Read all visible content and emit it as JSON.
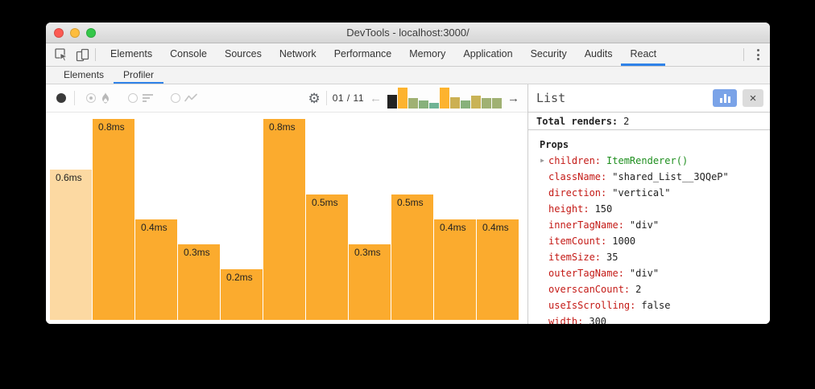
{
  "window": {
    "title": "DevTools - localhost:3000/"
  },
  "main_tabs": {
    "items": [
      "Elements",
      "Console",
      "Sources",
      "Network",
      "Performance",
      "Memory",
      "Application",
      "Security",
      "Audits",
      "React"
    ],
    "active": "React"
  },
  "sub_tabs": {
    "items": [
      "Elements",
      "Profiler"
    ],
    "active": "Profiler"
  },
  "toolbar": {
    "gear_icon": "⚙",
    "commit_position": "01 / 11",
    "prev_arrow": "←",
    "next_arrow": "→",
    "commit_bars": [
      {
        "h": 0.66,
        "color": "#222222",
        "selected": true
      },
      {
        "h": 1.0,
        "color": "#fdb32e"
      },
      {
        "h": 0.5,
        "color": "#a0b173"
      },
      {
        "h": 0.38,
        "color": "#87b17b"
      },
      {
        "h": 0.27,
        "color": "#6fb394"
      },
      {
        "h": 1.0,
        "color": "#fdb32e"
      },
      {
        "h": 0.54,
        "color": "#ccb052"
      },
      {
        "h": 0.38,
        "color": "#87b17b"
      },
      {
        "h": 0.62,
        "color": "#c9b356"
      },
      {
        "h": 0.5,
        "color": "#a0b173"
      },
      {
        "h": 0.5,
        "color": "#a0b173"
      }
    ]
  },
  "chart_data": {
    "type": "bar",
    "values": [
      0.6,
      0.8,
      0.4,
      0.3,
      0.2,
      0.8,
      0.5,
      0.3,
      0.5,
      0.4,
      0.4
    ],
    "labels": [
      "0.6ms",
      "0.8ms",
      "0.4ms",
      "0.3ms",
      "0.2ms",
      "0.8ms",
      "0.5ms",
      "0.3ms",
      "0.5ms",
      "0.4ms",
      "0.4ms"
    ],
    "unit": "ms",
    "ylim": [
      0,
      0.8
    ],
    "selected_index": 0,
    "bar_color": "#fbab2e",
    "selected_bar_color": "#fcd9a2",
    "label_color": "#222222",
    "grid": false,
    "orientation": "bottom-anchored"
  },
  "details_panel": {
    "title": "List",
    "close_icon": "×",
    "expander_icon": "▶",
    "accent_button_color": "#7aa3e8",
    "total_renders_label": "Total renders:",
    "total_renders_value": "2",
    "props_heading": "Props",
    "props": [
      {
        "key": "children",
        "value": "ItemRenderer()",
        "value_color": "green",
        "expandable": true
      },
      {
        "key": "className",
        "value": "\"shared_List__3QQeP\""
      },
      {
        "key": "direction",
        "value": "\"vertical\""
      },
      {
        "key": "height",
        "value": "150"
      },
      {
        "key": "innerTagName",
        "value": "\"div\""
      },
      {
        "key": "itemCount",
        "value": "1000"
      },
      {
        "key": "itemSize",
        "value": "35"
      },
      {
        "key": "outerTagName",
        "value": "\"div\""
      },
      {
        "key": "overscanCount",
        "value": "2"
      },
      {
        "key": "useIsScrolling",
        "value": "false"
      },
      {
        "key": "width",
        "value": "300"
      }
    ]
  }
}
